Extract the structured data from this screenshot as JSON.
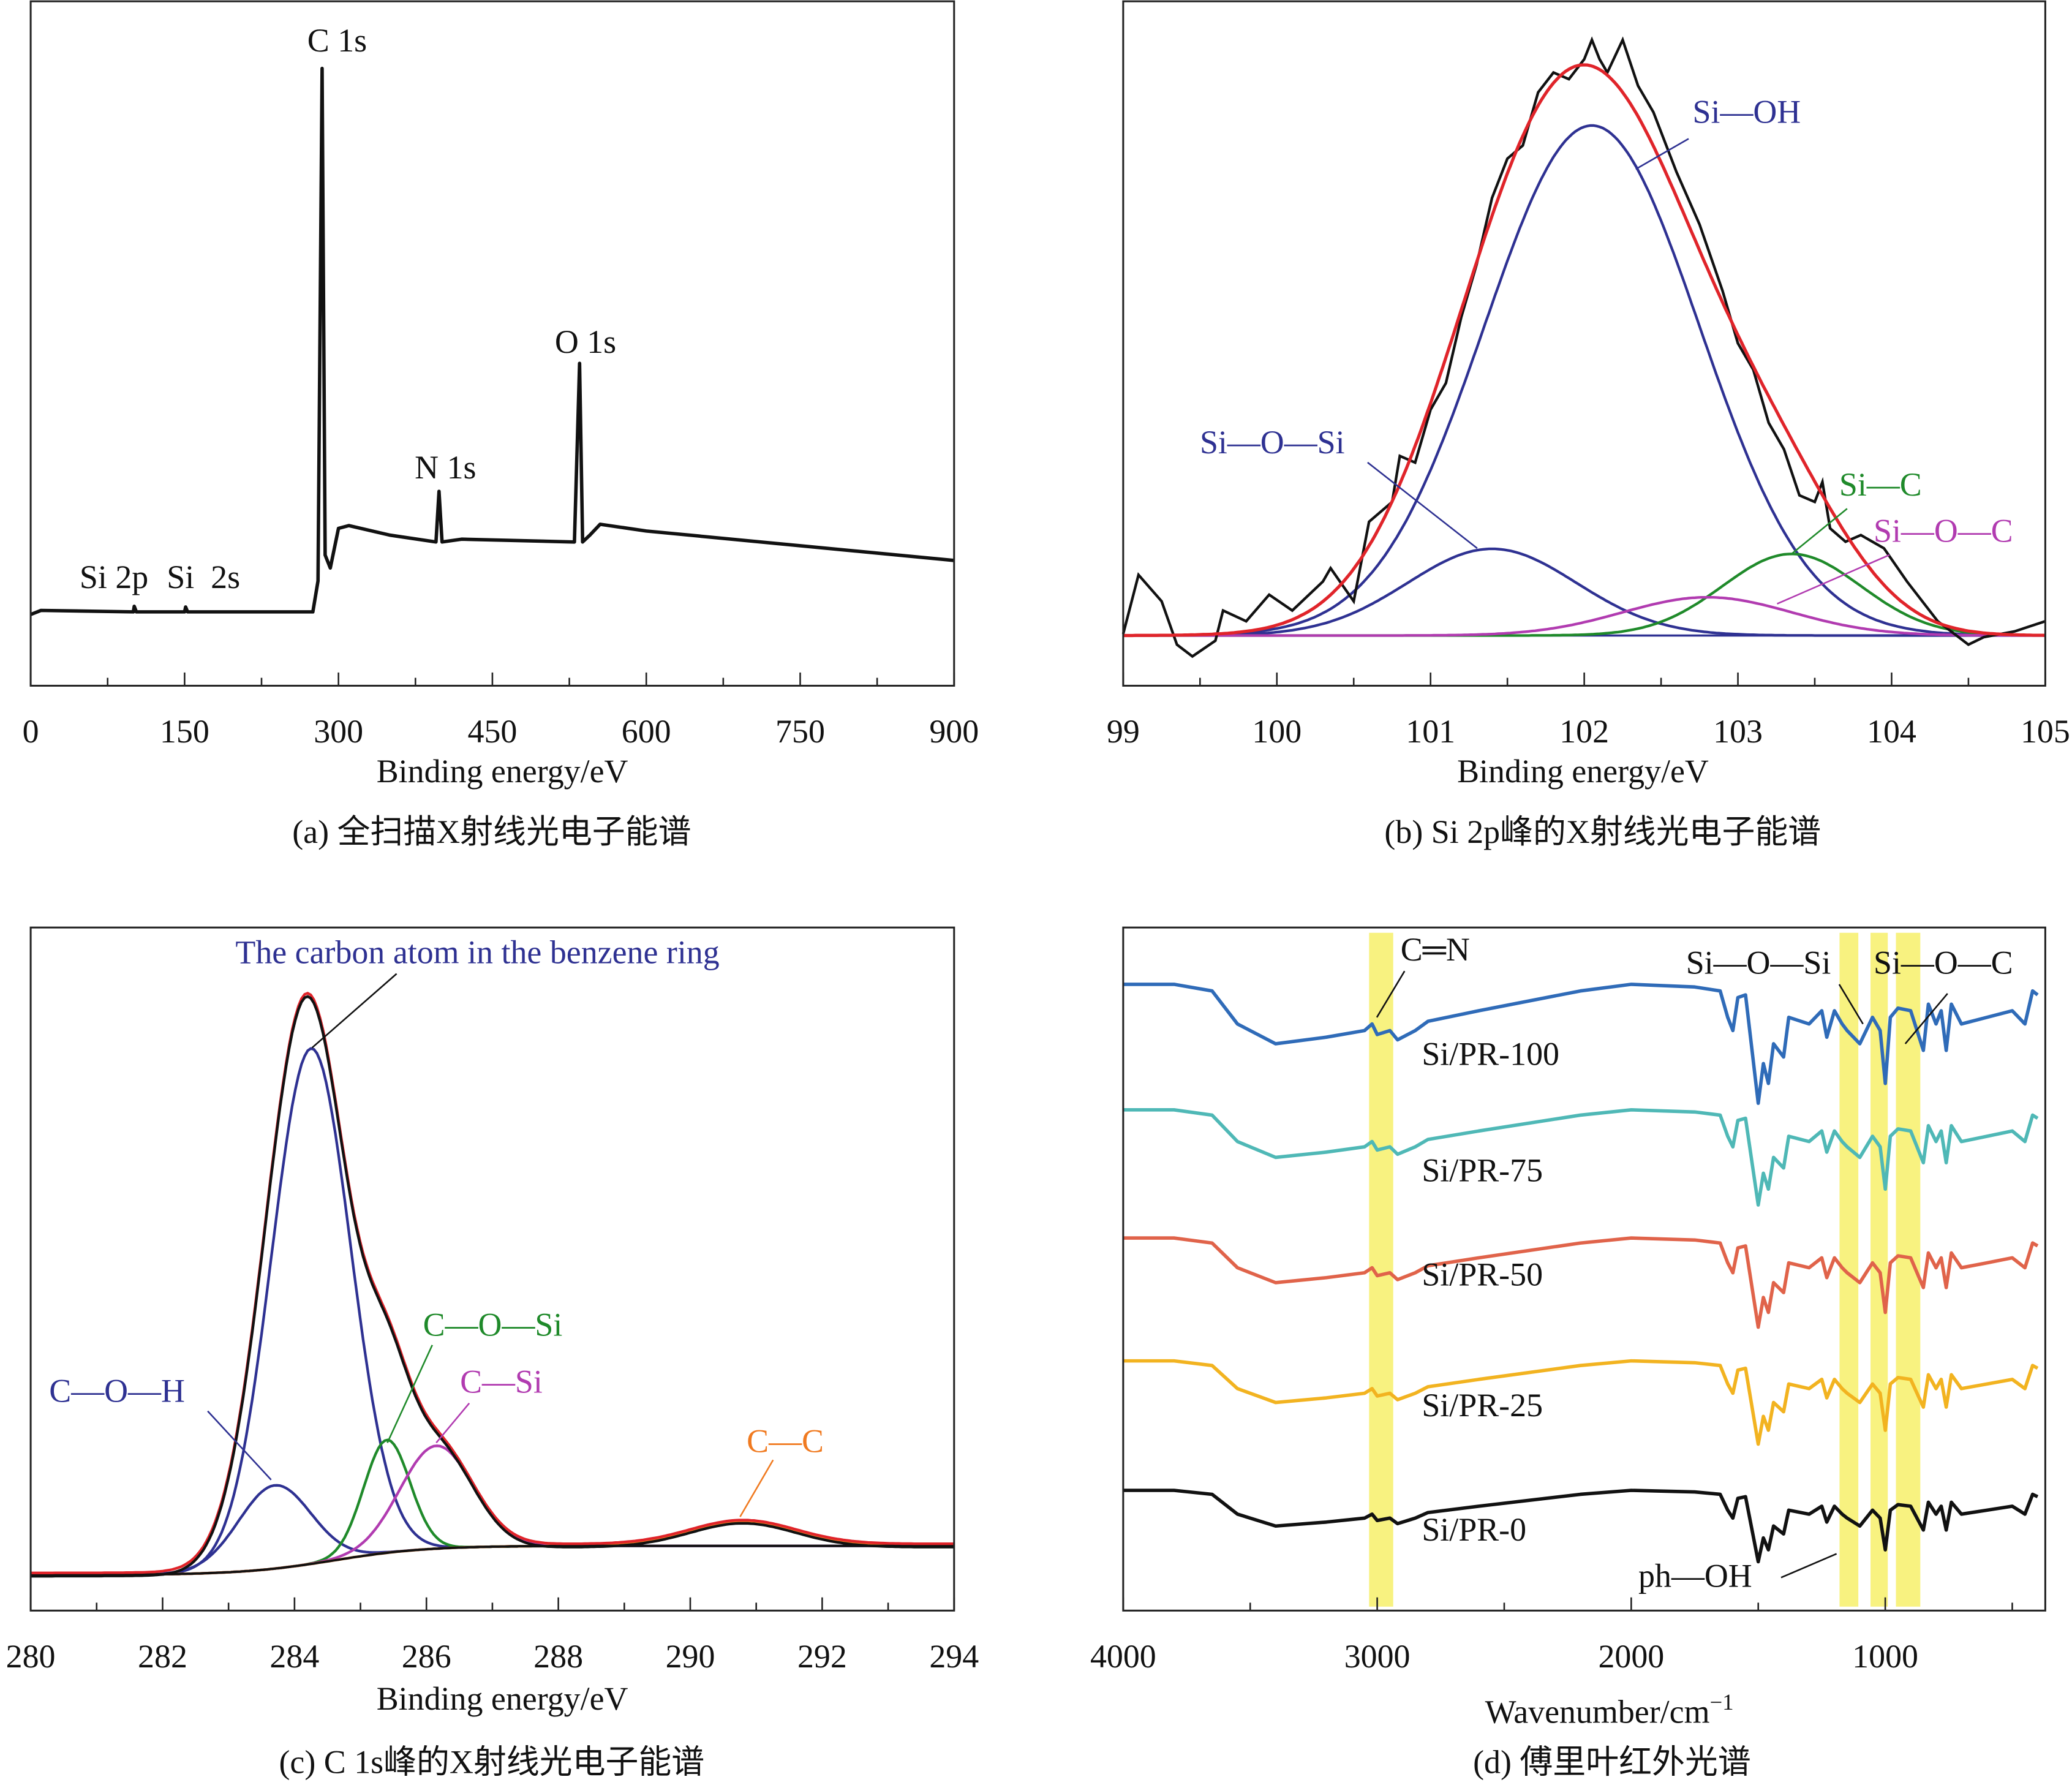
{
  "chart_data": [
    {
      "type": "line",
      "caption": "(a) 全扫描X射线光电子能谱",
      "xlabel": "Binding energy/eV",
      "ylabel": "",
      "xlim": [
        0,
        900
      ],
      "x_ticks": [
        "0",
        "150",
        "300",
        "450",
        "600",
        "750",
        "900"
      ],
      "grid": false,
      "series": [
        {
          "color": "#111111",
          "x": [
            0,
            10,
            100,
            101,
            103,
            150,
            151,
            153,
            275,
            280,
            284,
            287,
            292,
            300,
            310,
            350,
            395,
            398,
            401,
            420,
            530,
            535,
            538,
            545,
            555,
            600,
            900
          ],
          "y": [
            10.4,
            11,
            10.8,
            11.6,
            10.8,
            10.8,
            11.5,
            10.8,
            10.8,
            15.3,
            90.2,
            19.1,
            17.2,
            23,
            23.4,
            22,
            21,
            28.4,
            21,
            21.4,
            21,
            47.1,
            21,
            22,
            23.6,
            22.6,
            18.3
          ]
        }
      ],
      "annotations": [
        {
          "text": "C 1s",
          "x": 284
        },
        {
          "text": "O 1s",
          "x": 535
        },
        {
          "text": "N 1s",
          "x": 398
        },
        {
          "text": "Si 2p",
          "x": 101
        },
        {
          "text": "Si  2s",
          "x": 152
        }
      ]
    },
    {
      "type": "line",
      "caption": "(b) Si 2p峰的X射线光电子能谱",
      "xlabel": "Binding energy/eV",
      "ylabel": "",
      "xlim": [
        99,
        105
      ],
      "x_ticks": [
        "99",
        "100",
        "101",
        "102",
        "103",
        "104",
        "105"
      ],
      "grid": false,
      "raw": {
        "color": "#111111",
        "x": [
          99.0,
          99.1,
          99.25,
          99.35,
          99.45,
          99.6,
          99.65,
          99.8,
          99.95,
          100.1,
          100.3,
          100.35,
          100.5,
          100.6,
          100.75,
          100.8,
          100.9,
          101.0,
          101.1,
          101.2,
          101.3,
          101.4,
          101.5,
          101.6,
          101.7,
          101.8,
          101.9,
          102.0,
          102.05,
          102.1,
          102.15,
          102.25,
          102.35,
          102.45,
          102.6,
          102.75,
          102.9,
          103.0,
          103.1,
          103.2,
          103.3,
          103.4,
          103.5,
          103.55,
          103.6,
          103.7,
          103.8,
          103.95,
          104.1,
          104.3,
          104.5,
          104.6,
          104.8,
          105.0
        ],
        "y": [
          0.3,
          11.9,
          6.7,
          -1.8,
          -4.1,
          -1,
          4.9,
          2.8,
          8,
          4.9,
          10.6,
          13.2,
          6.7,
          22.3,
          26.2,
          35.2,
          33.9,
          44.3,
          49.5,
          62.4,
          72.8,
          85.8,
          93.5,
          96.1,
          106.5,
          110.4,
          109.1,
          113,
          116.8,
          113,
          110.4,
          116.8,
          107.8,
          102.6,
          90.9,
          80.6,
          67.6,
          57.3,
          52.1,
          41.7,
          36.5,
          27.5,
          26.2,
          30.1,
          21,
          18.4,
          19.7,
          17.1,
          10.6,
          2.8,
          -1.8,
          -0.3,
          0.8,
          2.8
        ]
      },
      "envelope_color": "#e0242a",
      "components": [
        {
          "name": "Si—OH",
          "center": 102.05,
          "height": 100,
          "sigma": 0.7,
          "color": "#2e3192"
        },
        {
          "name": "Si—O—Si",
          "center": 101.4,
          "height": 17,
          "sigma": 0.55,
          "color": "#2e3192"
        },
        {
          "name": "Si—C",
          "center": 103.35,
          "height": 16,
          "sigma": 0.45,
          "color": "#1f8a2a"
        },
        {
          "name": "Si—O—C",
          "center": 102.8,
          "height": 7.5,
          "sigma": 0.55,
          "color": "#b13bb0"
        }
      ]
    },
    {
      "type": "line",
      "caption": "(c) C 1s峰的X射线光电子能谱",
      "xlabel": "Binding energy/eV",
      "ylabel": "",
      "xlim": [
        280,
        294
      ],
      "x_ticks": [
        "280",
        "282",
        "284",
        "286",
        "288",
        "290",
        "292",
        "294"
      ],
      "grid": false,
      "background": {
        "step": 4.9,
        "center": 284.6,
        "width": 0.7,
        "color": "#111111"
      },
      "envelope_color": "#e0242a",
      "raw_color": "#111111",
      "components": [
        {
          "name": "The carbon atom in the benzene ring",
          "center": 284.25,
          "height": 86.7,
          "sigma": 0.6,
          "color": "#2e3192"
        },
        {
          "name": "C—O—H",
          "center": 283.7,
          "height": 14,
          "sigma": 0.55,
          "color": "#2e3192"
        },
        {
          "name": "C—O—Si",
          "center": 285.4,
          "height": 19,
          "sigma": 0.35,
          "color": "#1f8a2a"
        },
        {
          "name": "C—Si",
          "center": 286.15,
          "height": 17.3,
          "sigma": 0.55,
          "color": "#b13bb0"
        },
        {
          "name": "C—C",
          "center": 290.8,
          "height": 4,
          "sigma": 0.8,
          "color": "#f07a20"
        }
      ]
    },
    {
      "type": "line",
      "caption": "(d) 傅里叶红外光谱",
      "xlabel": "Wavenumber/cm",
      "xlabel_superscript": "−1",
      "ylabel": "",
      "xlim": [
        4000,
        370
      ],
      "x_ticks": [
        "4000",
        "3000",
        "2000",
        "1000"
      ],
      "grid": false,
      "profile": {
        "x": [
          4000,
          3800,
          3650,
          3550,
          3400,
          3200,
          3050,
          3020,
          3000,
          2950,
          2920,
          2850,
          2800,
          2600,
          2200,
          2000,
          1750,
          1650,
          1620,
          1600,
          1580,
          1550,
          1500,
          1480,
          1460,
          1440,
          1400,
          1380,
          1300,
          1250,
          1230,
          1200,
          1170,
          1150,
          1100,
          1050,
          1020,
          1000,
          980,
          950,
          900,
          850,
          830,
          800,
          780,
          760,
          740,
          700,
          600,
          500,
          450,
          420,
          400
        ],
        "y": [
          0,
          0,
          5,
          30,
          45,
          40,
          35,
          30,
          38,
          35,
          42,
          35,
          28,
          20,
          5,
          0,
          2,
          5,
          25,
          35,
          10,
          8,
          90,
          60,
          75,
          45,
          55,
          25,
          30,
          20,
          40,
          20,
          30,
          35,
          45,
          25,
          35,
          75,
          25,
          18,
          20,
          50,
          15,
          30,
          20,
          50,
          15,
          30,
          25,
          20,
          30,
          5,
          8
        ]
      },
      "series": [
        {
          "name": "Si/PR-100",
          "color": "#2f6bb8",
          "depth": 1.0
        },
        {
          "name": "Si/PR-75",
          "color": "#4fb8b6",
          "depth": 0.8
        },
        {
          "name": "Si/PR-50",
          "color": "#e0634a",
          "depth": 0.75
        },
        {
          "name": "Si/PR-25",
          "color": "#f2b320",
          "depth": 0.7
        },
        {
          "name": "Si/PR-0",
          "color": "#111111",
          "depth": 0.6
        }
      ],
      "highlight_color": "#f7f06a",
      "highlight_bands": [
        [
          3032,
          2937
        ],
        [
          1180,
          1106
        ],
        [
          1058,
          990
        ],
        [
          958,
          862
        ]
      ],
      "annotations": [
        {
          "text": "C═N"
        },
        {
          "text": "Si—O—Si"
        },
        {
          "text": "Si—O—C"
        },
        {
          "text": "ph—OH"
        }
      ]
    }
  ]
}
